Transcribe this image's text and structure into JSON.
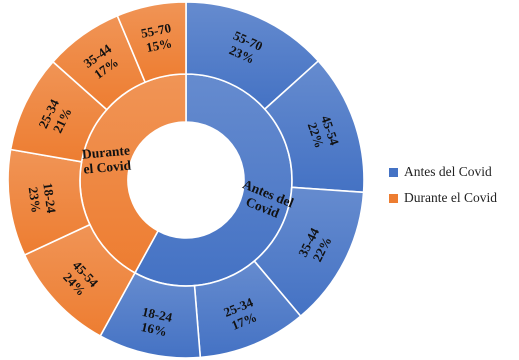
{
  "chart_data": {
    "type": "sunburst",
    "title": "",
    "colors": {
      "Antes del Covid": "#4472c4",
      "Durante el Covid": "#ed7d31",
      "border": "#ffffff"
    },
    "series": [
      {
        "name": "Antes del Covid",
        "center_label": [
          "Antes del",
          "Covid"
        ],
        "inner_share": 58,
        "segments": [
          {
            "range": "55-70",
            "percent": "23%",
            "value": 23
          },
          {
            "range": "45-54",
            "percent": "22%",
            "value": 22
          },
          {
            "range": "35-44",
            "percent": "22%",
            "value": 22
          },
          {
            "range": "25-34",
            "percent": "17%",
            "value": 17
          },
          {
            "range": "18-24",
            "percent": "16%",
            "value": 16
          }
        ]
      },
      {
        "name": "Durante el Covid",
        "center_label": [
          "Durante",
          "el Covid"
        ],
        "inner_share": 42,
        "segments": [
          {
            "range": "45-54",
            "percent": "24%",
            "value": 24
          },
          {
            "range": "18-24",
            "percent": "23%",
            "value": 23
          },
          {
            "range": "25-34",
            "percent": "21%",
            "value": 21
          },
          {
            "range": "35-44",
            "percent": "17%",
            "value": 17
          },
          {
            "range": "55-70",
            "percent": "15%",
            "value": 15
          }
        ]
      }
    ],
    "legend": {
      "position": "right",
      "entries": [
        "Antes del Covid",
        "Durante el Covid"
      ]
    }
  }
}
